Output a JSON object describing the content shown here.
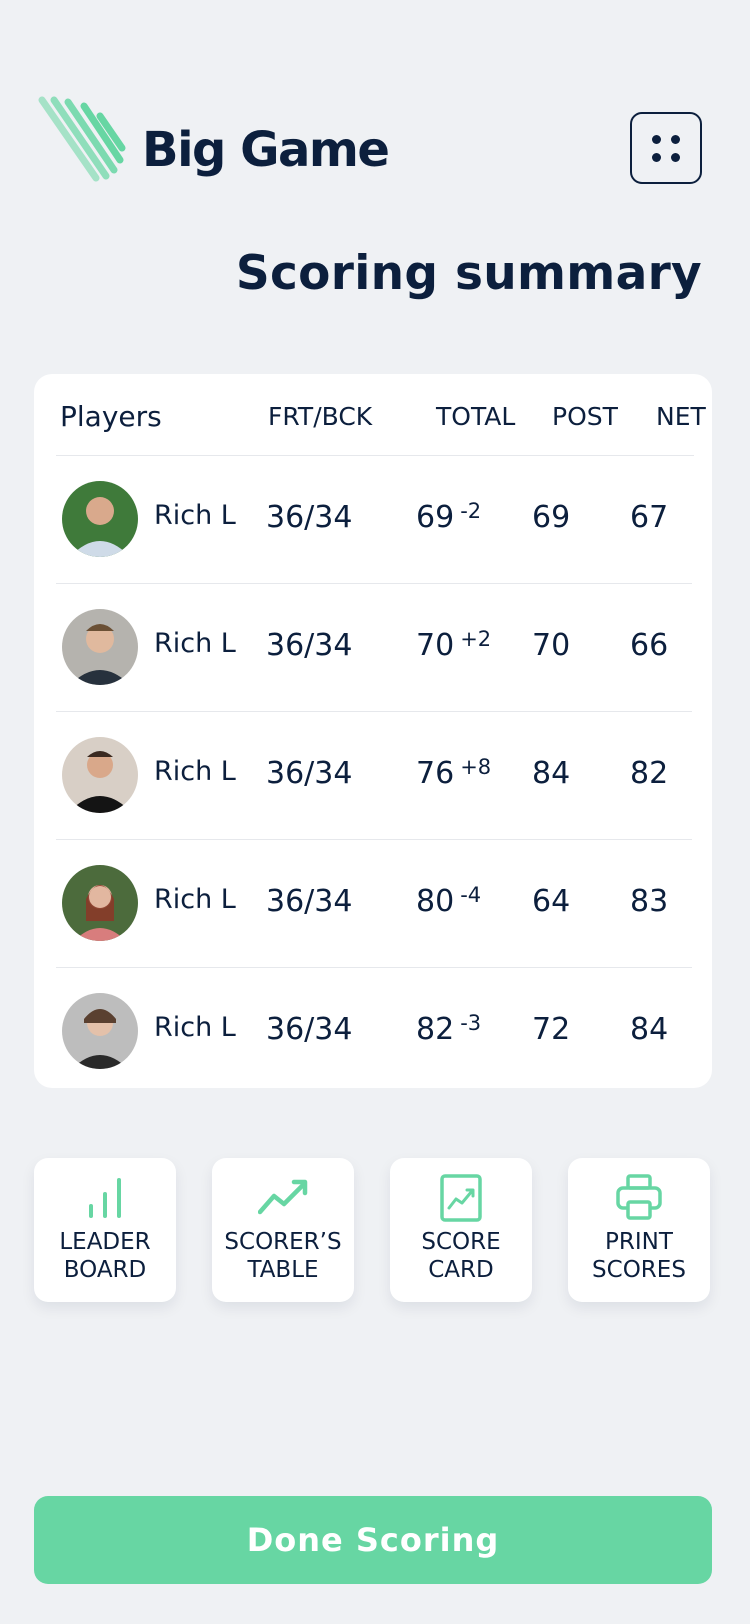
{
  "brand": {
    "name": "Big Game",
    "accent": "#67d6a3",
    "text_color": "#0c1f3d"
  },
  "header": {
    "menu_icon": "grid-dots-icon"
  },
  "page": {
    "title": "Scoring summary"
  },
  "table": {
    "columns": {
      "players": "Players",
      "frt": "FRT/BCK",
      "total": "TOTAL",
      "post": "POST",
      "net": "NET"
    },
    "rows": [
      {
        "name": "Rich L",
        "frt": "36/34",
        "total": "69",
        "diff": "-2",
        "post": "69",
        "net": "67"
      },
      {
        "name": "Rich L",
        "frt": "36/34",
        "total": "70",
        "diff": "+2",
        "post": "70",
        "net": "66"
      },
      {
        "name": "Rich L",
        "frt": "36/34",
        "total": "76",
        "diff": "+8",
        "post": "84",
        "net": "82"
      },
      {
        "name": "Rich L",
        "frt": "36/34",
        "total": "80",
        "diff": "-4",
        "post": "64",
        "net": "83"
      },
      {
        "name": "Rich L",
        "frt": "36/34",
        "total": "82",
        "diff": "-3",
        "post": "72",
        "net": "84"
      }
    ]
  },
  "actions": [
    {
      "label": "LEADER\nBOARD",
      "icon": "bar-chart-icon"
    },
    {
      "label": "SCORER’S\nTABLE",
      "icon": "trend-line-icon"
    },
    {
      "label": "SCORE\nCARD",
      "icon": "scorecard-chart-icon"
    },
    {
      "label": "PRINT\nSCORES",
      "icon": "printer-icon"
    }
  ],
  "footer": {
    "done_label": "Done Scoring"
  }
}
